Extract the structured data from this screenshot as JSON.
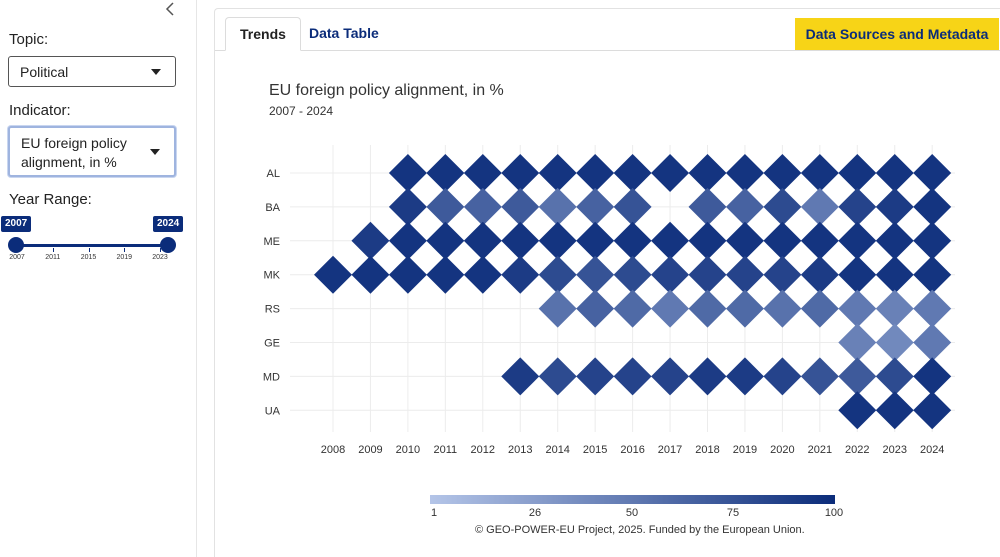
{
  "sidebar": {
    "collapse_icon": "chevron-left-icon",
    "topic_label": "Topic:",
    "topic_value": "Political",
    "indicator_label": "Indicator:",
    "indicator_value_line1": "EU foreign policy",
    "indicator_value_line2": "alignment, in %",
    "year_range_label": "Year Range:",
    "slider": {
      "min": 2007,
      "max": 2024,
      "start_label": "2007",
      "end_label": "2024",
      "ticks": [
        "2007",
        "2011",
        "2015",
        "2019",
        "2023"
      ]
    }
  },
  "tabs": [
    {
      "label": "Trends",
      "active": true
    },
    {
      "label": "Data Table",
      "active": false
    }
  ],
  "meta_button": "Data Sources and Metadata",
  "footer": "© GEO-POWER-EU Project, 2025. Funded by the European Union.",
  "colors": {
    "brand_blue": "#0b2c7a",
    "low_blue": "#b4c5e8",
    "yellow": "#f7d417"
  },
  "chart_data": {
    "type": "heatmap",
    "title": "EU foreign policy alignment, in %",
    "subtitle": "2007 - 2024",
    "x": [
      "2008",
      "2009",
      "2010",
      "2011",
      "2012",
      "2013",
      "2014",
      "2015",
      "2016",
      "2017",
      "2018",
      "2019",
      "2020",
      "2021",
      "2022",
      "2023",
      "2024"
    ],
    "y": [
      "AL",
      "BA",
      "ME",
      "MK",
      "RS",
      "GE",
      "MD",
      "UA"
    ],
    "values": {
      "AL": [
        null,
        null,
        95,
        95,
        95,
        95,
        95,
        95,
        95,
        95,
        95,
        95,
        95,
        95,
        95,
        95,
        95
      ],
      "BA": [
        null,
        null,
        90,
        70,
        65,
        70,
        55,
        65,
        75,
        null,
        70,
        65,
        80,
        50,
        85,
        90,
        95
      ],
      "ME": [
        null,
        90,
        95,
        95,
        95,
        95,
        95,
        95,
        95,
        95,
        95,
        95,
        95,
        95,
        95,
        95,
        95
      ],
      "MK": [
        95,
        95,
        95,
        95,
        95,
        90,
        80,
        75,
        80,
        85,
        85,
        85,
        85,
        90,
        95,
        95,
        95
      ],
      "RS": [
        null,
        null,
        null,
        null,
        null,
        null,
        55,
        65,
        60,
        50,
        60,
        60,
        55,
        60,
        50,
        45,
        50
      ],
      "GE": [
        null,
        null,
        null,
        null,
        null,
        null,
        null,
        null,
        null,
        null,
        null,
        null,
        null,
        null,
        45,
        40,
        50
      ],
      "MD": [
        null,
        null,
        null,
        null,
        null,
        90,
        80,
        85,
        85,
        85,
        90,
        90,
        85,
        75,
        70,
        80,
        95
      ],
      "UA": [
        null,
        null,
        null,
        null,
        null,
        null,
        null,
        null,
        null,
        null,
        null,
        null,
        null,
        null,
        95,
        95,
        95
      ]
    },
    "color_scale": {
      "min": 1,
      "max": 100,
      "labels": [
        "1",
        "26",
        "50",
        "75",
        "100"
      ]
    },
    "grid": true,
    "legend_placement": "bottom"
  }
}
